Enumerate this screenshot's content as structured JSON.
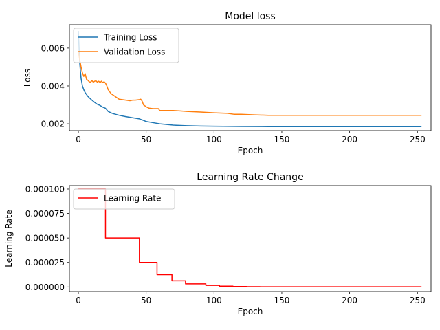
{
  "chart_data": [
    {
      "type": "line",
      "title": "Model loss",
      "xlabel": "Epoch",
      "ylabel": "Loss",
      "xlim": [
        -6.6,
        260
      ],
      "ylim": [
        0.00164,
        0.00723
      ],
      "xticks": [
        0,
        50,
        100,
        150,
        200,
        250
      ],
      "xtick_labels": [
        "0",
        "50",
        "100",
        "150",
        "200",
        "250"
      ],
      "yticks": [
        0.002,
        0.004,
        0.006
      ],
      "ytick_labels": [
        "0.002",
        "0.004",
        "0.006"
      ],
      "grid": false,
      "legend_position": "upper-left",
      "series": [
        {
          "name": "Training Loss",
          "color": "#1f77b4",
          "x": [
            0,
            1,
            2,
            3,
            4,
            5,
            6,
            7,
            8,
            10,
            12,
            14,
            16,
            18,
            20,
            22,
            25,
            30,
            35,
            40,
            45,
            48,
            50,
            55,
            60,
            70,
            80,
            90,
            100,
            120,
            140,
            160,
            200,
            253
          ],
          "y": [
            0.0069,
            0.0052,
            0.0044,
            0.004,
            0.0038,
            0.00365,
            0.00355,
            0.00345,
            0.00338,
            0.00325,
            0.00313,
            0.00303,
            0.00297,
            0.00288,
            0.00282,
            0.00265,
            0.00255,
            0.00245,
            0.00238,
            0.00232,
            0.00226,
            0.00218,
            0.00212,
            0.00206,
            0.002,
            0.00193,
            0.0019,
            0.00188,
            0.00187,
            0.00186,
            0.00185,
            0.00185,
            0.00185,
            0.00185
          ]
        },
        {
          "name": "Validation Loss",
          "color": "#ff7f0e",
          "x": [
            0,
            1,
            2,
            3,
            4,
            5,
            6,
            7,
            8,
            9,
            10,
            11,
            12,
            13,
            14,
            15,
            16,
            17,
            18,
            19,
            20,
            21,
            22,
            24,
            26,
            28,
            30,
            35,
            38,
            40,
            42,
            45,
            46,
            47,
            48,
            50,
            52,
            55,
            58,
            59,
            60,
            65,
            70,
            75,
            80,
            90,
            100,
            110,
            115,
            120,
            130,
            140,
            150,
            170,
            200,
            253
          ],
          "y": [
            0.0058,
            0.0054,
            0.005,
            0.0047,
            0.0045,
            0.00465,
            0.00435,
            0.0043,
            0.00422,
            0.0042,
            0.00428,
            0.0042,
            0.00425,
            0.00427,
            0.0042,
            0.00425,
            0.00418,
            0.00425,
            0.00418,
            0.00422,
            0.00415,
            0.004,
            0.0038,
            0.0036,
            0.0035,
            0.0034,
            0.0033,
            0.00325,
            0.00322,
            0.00325,
            0.00325,
            0.00328,
            0.0033,
            0.0032,
            0.003,
            0.0029,
            0.00283,
            0.0028,
            0.0028,
            0.0028,
            0.0027,
            0.0027,
            0.0027,
            0.00268,
            0.00265,
            0.00262,
            0.00258,
            0.00255,
            0.0025,
            0.0025,
            0.00247,
            0.00245,
            0.00245,
            0.00245,
            0.00245,
            0.00245
          ]
        }
      ]
    },
    {
      "type": "line",
      "title": "Learning Rate Change",
      "xlabel": "Epoch",
      "ylabel": "Learning Rate",
      "xlim": [
        -6.6,
        260
      ],
      "ylim": [
        -4.7e-06,
        0.0001035
      ],
      "xticks": [
        0,
        50,
        100,
        150,
        200,
        250
      ],
      "xtick_labels": [
        "0",
        "50",
        "100",
        "150",
        "200",
        "250"
      ],
      "yticks": [
        0,
        2.5e-05,
        5e-05,
        7.5e-05,
        0.0001
      ],
      "ytick_labels": [
        "0.000000",
        "0.000025",
        "0.000050",
        "0.000075",
        "0.000100"
      ],
      "grid": false,
      "legend_position": "upper-left",
      "series": [
        {
          "name": "Learning Rate",
          "color": "#ff0000",
          "x": [
            0,
            20,
            20,
            45,
            45,
            58,
            58,
            69,
            69,
            79,
            79,
            94,
            94,
            104,
            104,
            114,
            114,
            124,
            124,
            134,
            134,
            253
          ],
          "y": [
            0.0001,
            0.0001,
            5e-05,
            5e-05,
            2.5e-05,
            2.5e-05,
            1.25e-05,
            1.25e-05,
            6.25e-06,
            6.25e-06,
            3.125e-06,
            3.125e-06,
            1.5625e-06,
            1.5625e-06,
            7.8e-07,
            7.8e-07,
            3.9e-07,
            3.9e-07,
            2e-07,
            2e-07,
            1e-07,
            1e-07
          ]
        }
      ]
    }
  ]
}
